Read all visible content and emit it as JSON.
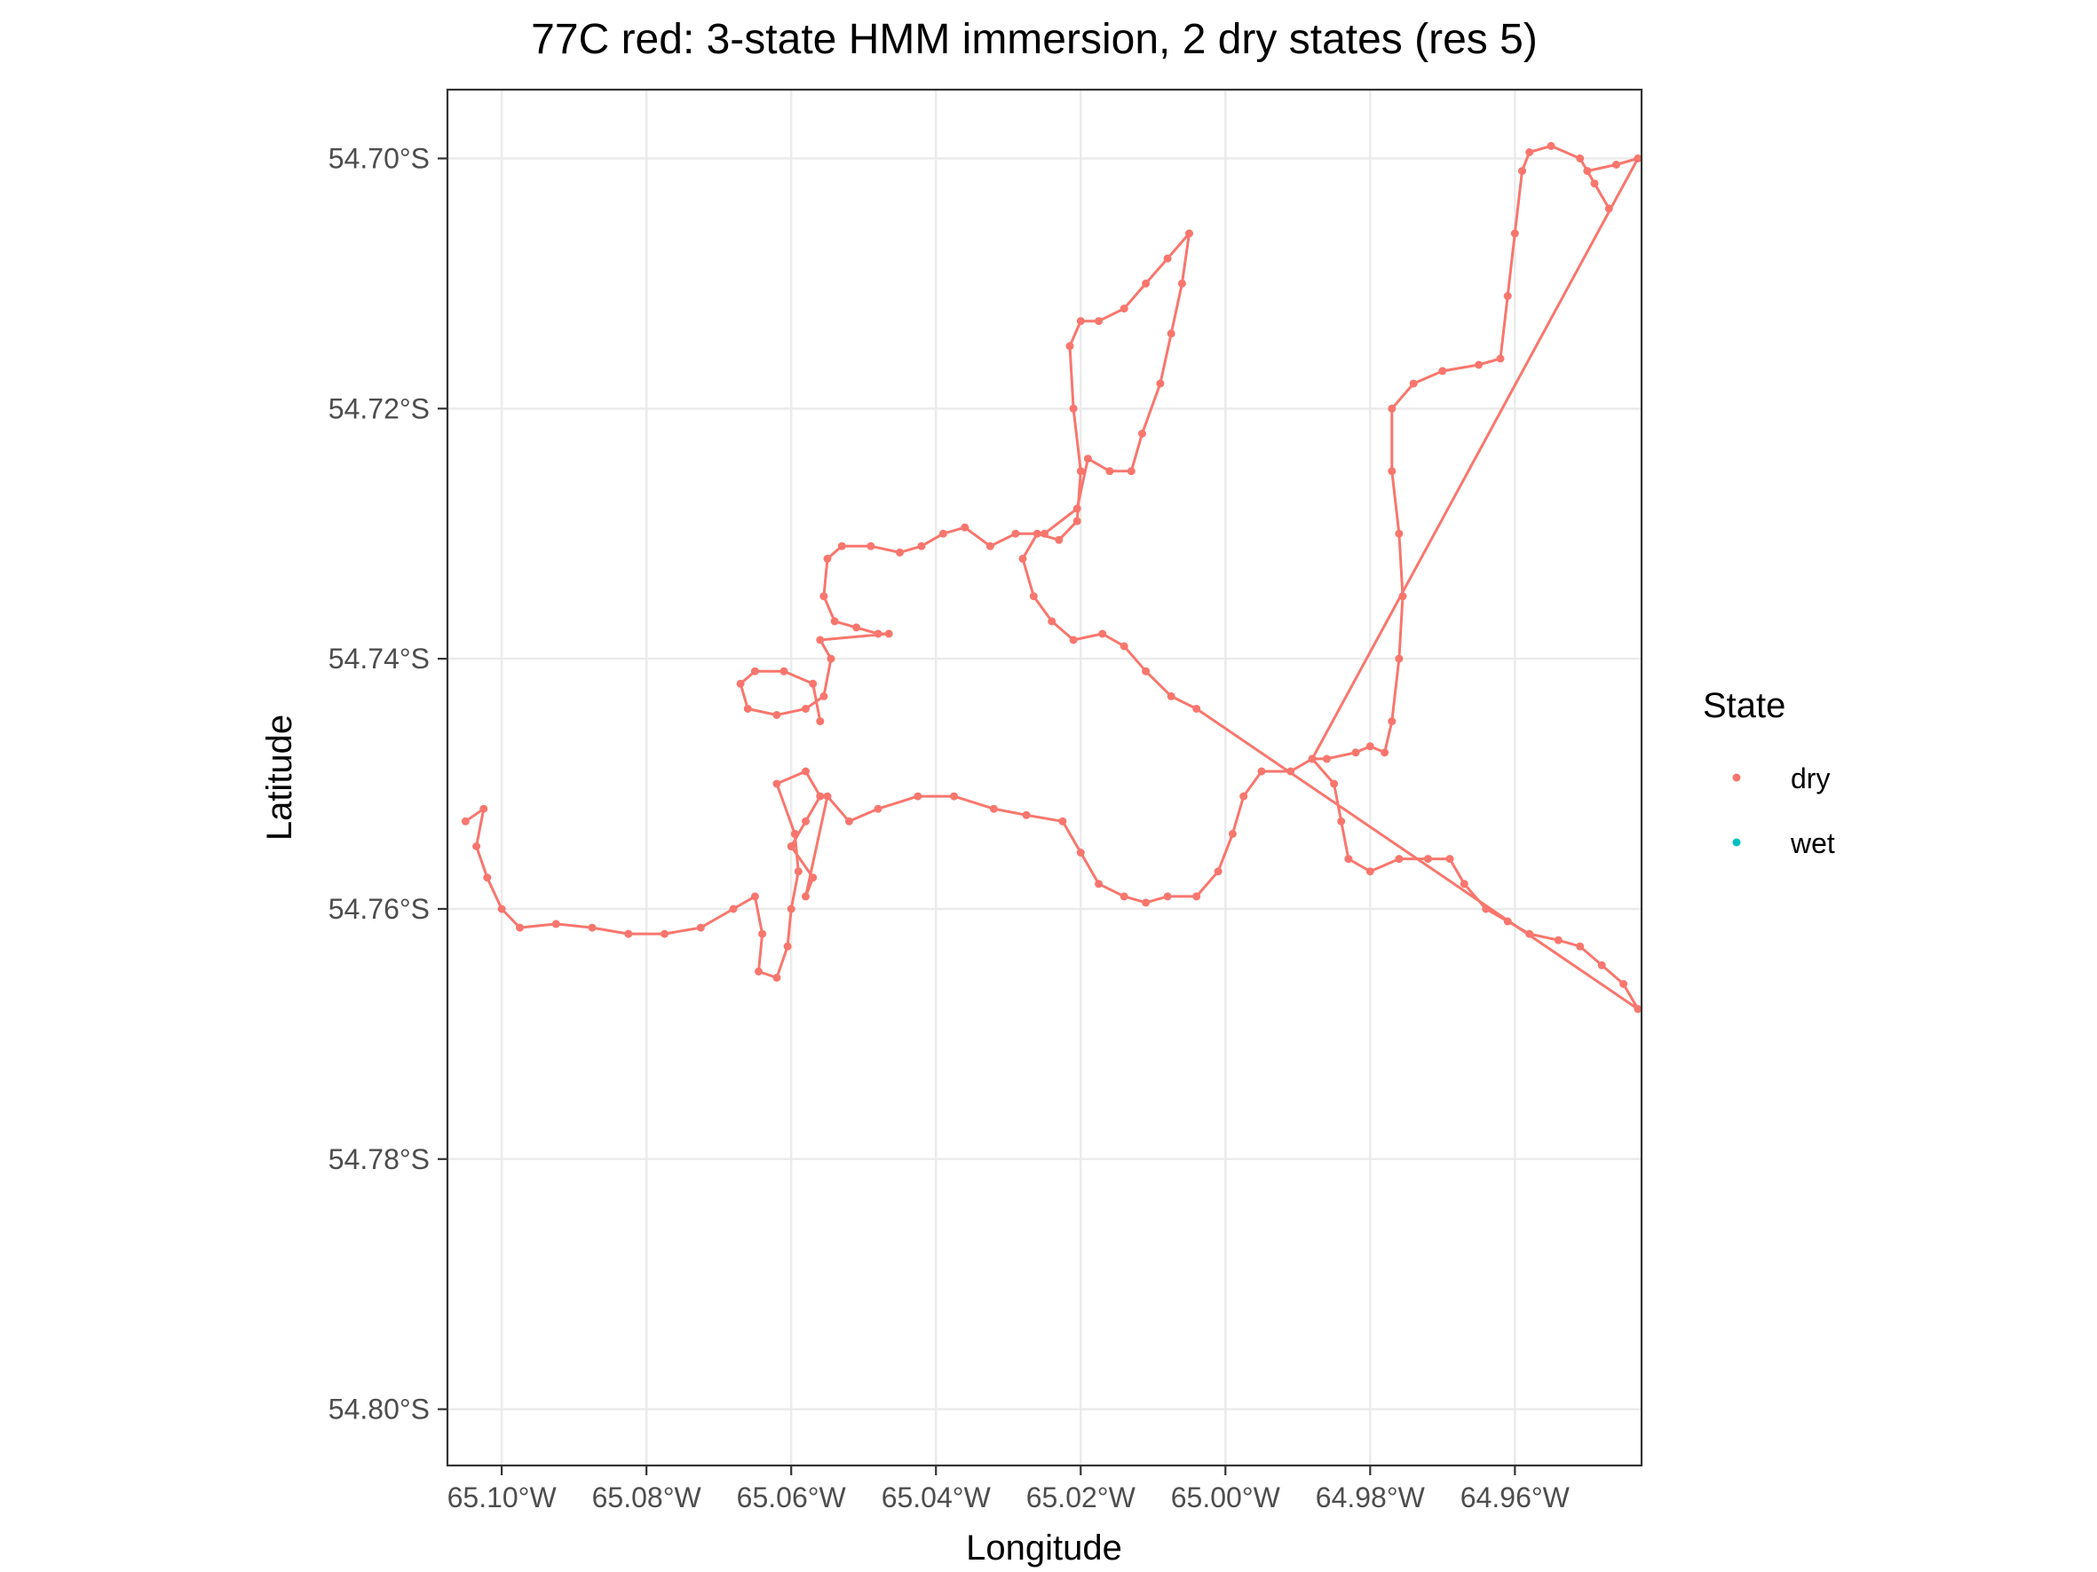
{
  "chart_data": {
    "type": "scatter",
    "title": "77C red: 3-state HMM immersion, 2 dry states (res 5)",
    "xlabel": "Longitude",
    "ylabel": "Latitude",
    "xlim": [
      -65.1075,
      -64.9425
    ],
    "ylim": [
      -54.8045,
      -54.6945
    ],
    "x_ticks": [
      {
        "value": -65.1,
        "label": "65.10°W"
      },
      {
        "value": -65.08,
        "label": "65.08°W"
      },
      {
        "value": -65.06,
        "label": "65.06°W"
      },
      {
        "value": -65.04,
        "label": "65.04°W"
      },
      {
        "value": -65.02,
        "label": "65.02°W"
      },
      {
        "value": -65.0,
        "label": "65.00°W"
      },
      {
        "value": -64.98,
        "label": "64.98°W"
      },
      {
        "value": -64.96,
        "label": "64.96°W"
      }
    ],
    "y_ticks": [
      {
        "value": -54.7,
        "label": "54.70°S"
      },
      {
        "value": -54.72,
        "label": "54.72°S"
      },
      {
        "value": -54.74,
        "label": "54.74°S"
      },
      {
        "value": -54.76,
        "label": "54.76°S"
      },
      {
        "value": -54.78,
        "label": "54.78°S"
      },
      {
        "value": -54.8,
        "label": "54.80°S"
      }
    ],
    "grid": true,
    "legend": {
      "title": "State",
      "position": "right",
      "entries": [
        {
          "name": "dry",
          "color": "#F8766D"
        },
        {
          "name": "wet",
          "color": "#00BFC4"
        }
      ]
    },
    "series": [
      {
        "name": "dry",
        "color": "#F8766D",
        "points": [
          [
            -65.105,
            -54.753
          ],
          [
            -65.1025,
            -54.752
          ],
          [
            -65.1035,
            -54.755
          ],
          [
            -65.102,
            -54.7575
          ],
          [
            -65.1,
            -54.76
          ],
          [
            -65.0975,
            -54.7615
          ],
          [
            -65.0925,
            -54.7612
          ],
          [
            -65.0875,
            -54.7615
          ],
          [
            -65.0825,
            -54.762
          ],
          [
            -65.0775,
            -54.762
          ],
          [
            -65.0725,
            -54.7615
          ],
          [
            -65.068,
            -54.76
          ],
          [
            -65.065,
            -54.759
          ],
          [
            -65.064,
            -54.762
          ],
          [
            -65.0645,
            -54.765
          ],
          [
            -65.062,
            -54.7655
          ],
          [
            -65.0605,
            -54.763
          ],
          [
            -65.06,
            -54.76
          ],
          [
            -65.059,
            -54.757
          ],
          [
            -65.0595,
            -54.754
          ],
          [
            -65.062,
            -54.75
          ],
          [
            -65.058,
            -54.749
          ],
          [
            -65.056,
            -54.751
          ],
          [
            -65.058,
            -54.753
          ],
          [
            -65.06,
            -54.755
          ],
          [
            -65.057,
            -54.7575
          ],
          [
            -65.058,
            -54.759
          ],
          [
            -65.055,
            -54.751
          ],
          [
            -65.052,
            -54.753
          ],
          [
            -65.048,
            -54.752
          ],
          [
            -65.0425,
            -54.751
          ],
          [
            -65.0375,
            -54.751
          ],
          [
            -65.032,
            -54.752
          ],
          [
            -65.0275,
            -54.7525
          ],
          [
            -65.0225,
            -54.753
          ],
          [
            -65.02,
            -54.7555
          ],
          [
            -65.0175,
            -54.758
          ],
          [
            -65.014,
            -54.759
          ],
          [
            -65.011,
            -54.7595
          ],
          [
            -65.008,
            -54.759
          ],
          [
            -65.004,
            -54.759
          ],
          [
            -65.001,
            -54.757
          ],
          [
            -64.999,
            -54.754
          ],
          [
            -64.9975,
            -54.751
          ],
          [
            -64.995,
            -54.749
          ],
          [
            -64.991,
            -54.749
          ],
          [
            -64.988,
            -54.748
          ],
          [
            -64.986,
            -54.748
          ],
          [
            -64.982,
            -54.7475
          ],
          [
            -64.98,
            -54.747
          ],
          [
            -64.978,
            -54.7475
          ],
          [
            -64.977,
            -54.745
          ],
          [
            -64.976,
            -54.74
          ],
          [
            -64.9755,
            -54.735
          ],
          [
            -64.976,
            -54.73
          ],
          [
            -64.977,
            -54.725
          ],
          [
            -64.977,
            -54.72
          ],
          [
            -64.974,
            -54.718
          ],
          [
            -64.97,
            -54.717
          ],
          [
            -64.965,
            -54.7165
          ],
          [
            -64.962,
            -54.716
          ],
          [
            -64.961,
            -54.711
          ],
          [
            -64.96,
            -54.706
          ],
          [
            -64.959,
            -54.701
          ],
          [
            -64.958,
            -54.6995
          ],
          [
            -64.955,
            -54.699
          ],
          [
            -64.951,
            -54.7
          ],
          [
            -64.949,
            -54.702
          ],
          [
            -64.947,
            -54.704
          ],
          [
            -64.95,
            -54.701
          ],
          [
            -64.946,
            -54.7005
          ],
          [
            -64.943,
            -54.7
          ],
          [
            -64.988,
            -54.748
          ],
          [
            -64.985,
            -54.75
          ],
          [
            -64.984,
            -54.753
          ],
          [
            -64.983,
            -54.756
          ],
          [
            -64.98,
            -54.757
          ],
          [
            -64.976,
            -54.756
          ],
          [
            -64.972,
            -54.756
          ],
          [
            -64.969,
            -54.756
          ],
          [
            -64.967,
            -54.758
          ],
          [
            -64.964,
            -54.76
          ],
          [
            -64.961,
            -54.761
          ],
          [
            -64.958,
            -54.762
          ],
          [
            -64.954,
            -54.7625
          ],
          [
            -64.951,
            -54.763
          ],
          [
            -64.948,
            -54.7645
          ],
          [
            -64.945,
            -54.766
          ],
          [
            -64.943,
            -54.768
          ],
          [
            -65.004,
            -54.744
          ],
          [
            -65.0075,
            -54.743
          ],
          [
            -65.011,
            -54.741
          ],
          [
            -65.014,
            -54.739
          ],
          [
            -65.017,
            -54.738
          ],
          [
            -65.021,
            -54.7385
          ],
          [
            -65.024,
            -54.737
          ],
          [
            -65.0265,
            -54.735
          ],
          [
            -65.028,
            -54.732
          ],
          [
            -65.026,
            -54.73
          ],
          [
            -65.023,
            -54.7305
          ],
          [
            -65.0205,
            -54.729
          ],
          [
            -65.02,
            -54.725
          ],
          [
            -65.021,
            -54.72
          ],
          [
            -65.0215,
            -54.715
          ],
          [
            -65.02,
            -54.713
          ],
          [
            -65.0175,
            -54.713
          ],
          [
            -65.014,
            -54.712
          ],
          [
            -65.011,
            -54.71
          ],
          [
            -65.008,
            -54.708
          ],
          [
            -65.005,
            -54.706
          ],
          [
            -65.006,
            -54.71
          ],
          [
            -65.0075,
            -54.714
          ],
          [
            -65.009,
            -54.718
          ],
          [
            -65.0115,
            -54.722
          ],
          [
            -65.013,
            -54.725
          ],
          [
            -65.016,
            -54.725
          ],
          [
            -65.019,
            -54.724
          ],
          [
            -65.0205,
            -54.728
          ],
          [
            -65.025,
            -54.73
          ],
          [
            -65.029,
            -54.73
          ],
          [
            -65.0325,
            -54.731
          ],
          [
            -65.036,
            -54.7295
          ],
          [
            -65.039,
            -54.73
          ],
          [
            -65.042,
            -54.731
          ],
          [
            -65.045,
            -54.7315
          ],
          [
            -65.049,
            -54.731
          ],
          [
            -65.053,
            -54.731
          ],
          [
            -65.055,
            -54.732
          ],
          [
            -65.0555,
            -54.735
          ],
          [
            -65.054,
            -54.737
          ],
          [
            -65.051,
            -54.7375
          ],
          [
            -65.048,
            -54.738
          ],
          [
            -65.0465,
            -54.738
          ],
          [
            -65.056,
            -54.7385
          ],
          [
            -65.0545,
            -54.74
          ],
          [
            -65.0555,
            -54.743
          ],
          [
            -65.058,
            -54.744
          ],
          [
            -65.062,
            -54.7445
          ],
          [
            -65.066,
            -54.744
          ],
          [
            -65.067,
            -54.742
          ],
          [
            -65.065,
            -54.741
          ],
          [
            -65.061,
            -54.741
          ],
          [
            -65.057,
            -54.742
          ],
          [
            -65.056,
            -54.745
          ]
        ]
      },
      {
        "name": "wet",
        "color": "#00BFC4",
        "points": []
      }
    ]
  }
}
